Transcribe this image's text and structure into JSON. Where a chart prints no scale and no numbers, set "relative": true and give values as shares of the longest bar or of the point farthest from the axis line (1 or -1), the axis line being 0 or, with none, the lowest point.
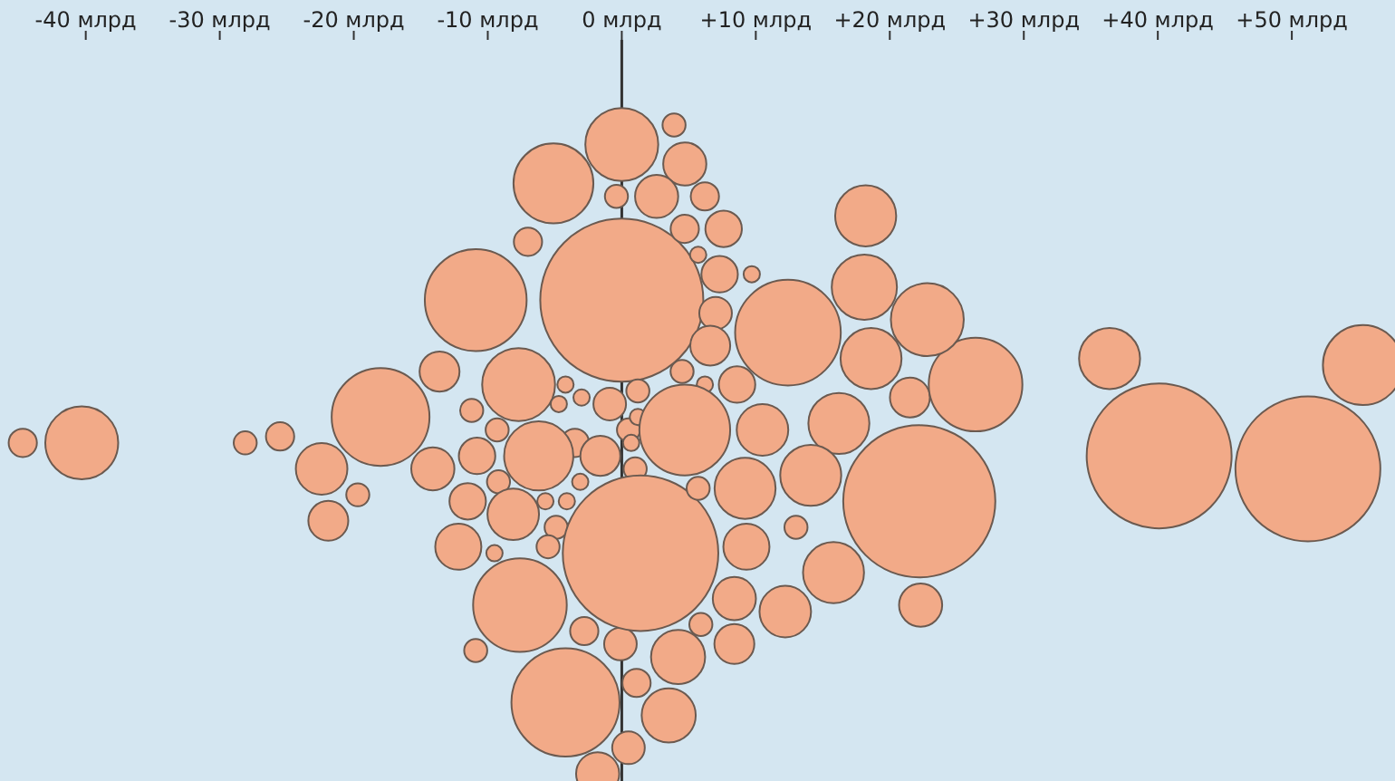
{
  "chart_data": {
    "type": "bubble",
    "relative": true,
    "tick_labels": "x",
    "xlim": [
      -46.4,
      57.7
    ],
    "xticks": [
      {
        "value": -40,
        "label": "-40 млрд"
      },
      {
        "value": -30,
        "label": "-30 млрд"
      },
      {
        "value": -20,
        "label": "-20 млрд"
      },
      {
        "value": -10,
        "label": "-10 млрд"
      },
      {
        "value": 0,
        "label": "0 млрд"
      },
      {
        "value": 10,
        "label": "+10 млрд"
      },
      {
        "value": 20,
        "label": "+20 млрд"
      },
      {
        "value": 30,
        "label": "+30 млрд"
      },
      {
        "value": 40,
        "label": "+40 млрд"
      },
      {
        "value": 50,
        "label": "+50 млрд"
      }
    ],
    "ref_lines": [
      {
        "axis": "x",
        "value": 0,
        "color": "#333333"
      }
    ],
    "color": "#f2aa88",
    "x": [
      -44.7,
      -40.3,
      -28.1,
      -25.5,
      -22.4,
      -19.7,
      -21.9,
      -18.0,
      -13.6,
      -14.1,
      -10.9,
      -5.1,
      -7.0,
      0,
      -0.4,
      0,
      -7.7,
      -4.2,
      -3.0,
      -4.7,
      -0.9,
      1.2,
      -11.2,
      -9.3,
      -3.5,
      -6.2,
      -10.8,
      -1.6,
      0.5,
      0.7,
      1.0,
      -11.5,
      -9.2,
      -8.1,
      -5.7,
      -4.1,
      -3.1,
      -4.9,
      -5.5,
      -9.5,
      -12.2,
      -7.6,
      -10.9,
      -2.8,
      -0.1,
      -4.2,
      0.5,
      -1.8,
      3.9,
      4.7,
      2.6,
      6.2,
      4.7,
      7.6,
      5.7,
      7.3,
      9.7,
      7.0,
      12.4,
      6.6,
      4.5,
      6.2,
      8.6,
      1.2,
      4.7,
      10.5,
      16.2,
      21.5,
      26.4,
      18.2,
      18.1,
      22.8,
      18.6,
      1.4,
      22.2,
      9.2,
      14.1,
      13.0,
      9.3,
      15.8,
      8.4,
      12.2,
      5.9,
      8.4,
      4.2,
      22.3,
      1.1,
      3.5,
      5.7,
      36.4,
      40.1,
      51.2,
      55.3
    ],
    "values": [
      0.51,
      0.51,
      0.51,
      0.52,
      0.47,
      0.43,
      0.39,
      0.55,
      0.62,
      0.47,
      0.73,
      0.91,
      0.82,
      0.97,
      0.89,
      0.73,
      0.6,
      0.6,
      0.58,
      0.57,
      0.57,
      0.59,
      0.56,
      0.53,
      0.51,
      0.49,
      0.49,
      0.49,
      0.53,
      0.51,
      0.47,
      0.42,
      0.45,
      0.4,
      0.42,
      0.42,
      0.45,
      0.38,
      0.35,
      0.34,
      0.35,
      0.26,
      0.19,
      0.22,
      0.2,
      0.11,
      0.04,
      0,
      1,
      0.94,
      0.89,
      0.89,
      0.84,
      0.84,
      0.8,
      0.77,
      0.77,
      0.71,
      0.68,
      0.66,
      0.62,
      0.6,
      0.6,
      0.55,
      0.53,
      0.53,
      0.54,
      0.58,
      0.6,
      0.86,
      0.75,
      0.7,
      0.64,
      0.34,
      0.42,
      0.44,
      0.46,
      0.38,
      0.35,
      0.31,
      0.27,
      0.25,
      0.23,
      0.2,
      0.18,
      0.26,
      0.14,
      0.09,
      0.44,
      0.64,
      0.49,
      0.47,
      0.63
    ],
    "sizes": [
      0.03,
      0.2,
      0.02,
      0.03,
      0.1,
      0.02,
      0.06,
      0.36,
      0.06,
      0.07,
      0.39,
      0.24,
      0.03,
      0.2,
      0.02,
      1,
      0.2,
      0.01,
      0.01,
      0.01,
      0.04,
      0.02,
      0.02,
      0.02,
      0.03,
      0.18,
      0.05,
      0.06,
      0.02,
      0.01,
      0.02,
      0.05,
      0.02,
      0.1,
      0.01,
      0.01,
      0.01,
      0.02,
      0.02,
      0.01,
      0.08,
      0.33,
      0.02,
      0.03,
      0.04,
      0.44,
      0.04,
      0.07,
      0.02,
      0.07,
      0.07,
      0.03,
      0.03,
      0.05,
      0.01,
      0.05,
      0.01,
      0.04,
      0.42,
      0.06,
      0.02,
      0.01,
      0.05,
      0.01,
      0.31,
      0.1,
      0.14,
      0.06,
      0.33,
      0.14,
      0.16,
      0.2,
      0.14,
      0.91,
      0.87,
      0.14,
      0.14,
      0.02,
      0.08,
      0.14,
      0.07,
      0.1,
      0.02,
      0.06,
      0.11,
      0.07,
      0.03,
      0.11,
      0.02,
      0.14,
      0.79,
      0.79,
      0.24
    ]
  }
}
